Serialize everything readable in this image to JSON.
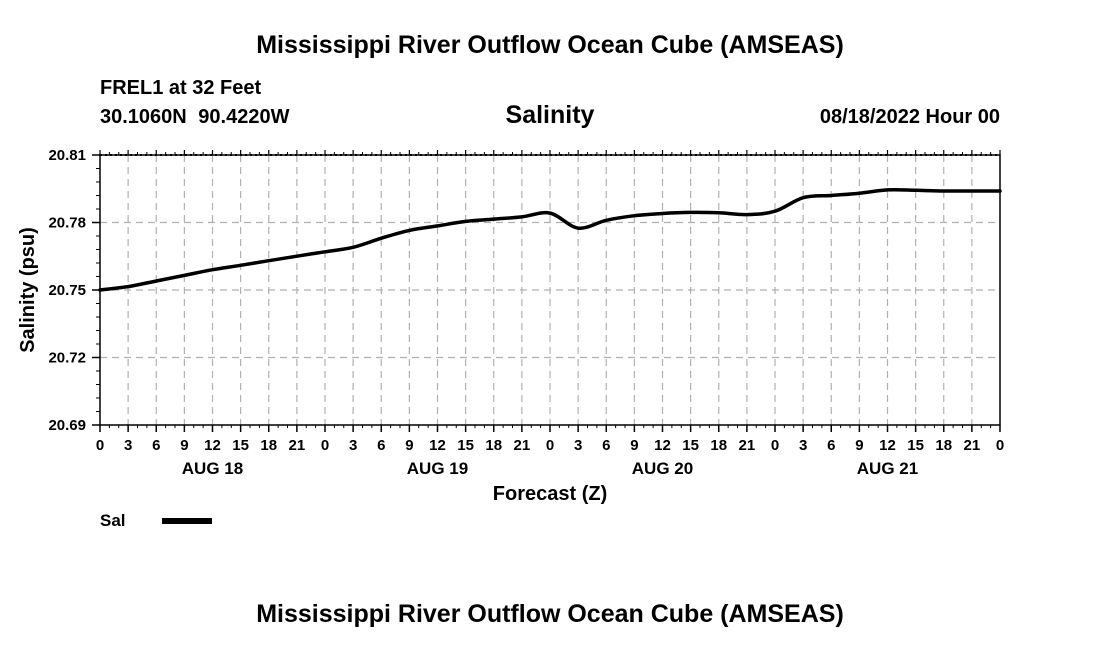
{
  "header": {
    "top_title": "Mississippi River Outflow Ocean Cube (AMSEAS)",
    "bottom_title": "Mississippi River Outflow Ocean Cube (AMSEAS)",
    "station": "FREL1 at 32 Feet",
    "coordinates": "30.1060N  90.4220W",
    "datetime": "08/18/2022 Hour 00"
  },
  "chart_data": {
    "type": "line",
    "title": "Salinity",
    "xlabel": "Forecast (Z)",
    "ylabel": "Salinity (psu)",
    "ylim": [
      20.69,
      20.81
    ],
    "yticks": [
      20.81,
      20.78,
      20.75,
      20.72,
      20.69
    ],
    "ytick_labels": [
      "20.81",
      "20.78",
      "20.75",
      "20.72",
      "20.69"
    ],
    "xlim": [
      0,
      96
    ],
    "x_ticks_hours": [
      0,
      3,
      6,
      9,
      12,
      15,
      18,
      21,
      24,
      27,
      30,
      33,
      36,
      39,
      42,
      45,
      48,
      51,
      54,
      57,
      60,
      63,
      66,
      69,
      72,
      75,
      78,
      81,
      84,
      87,
      90,
      93,
      96
    ],
    "x_tick_labels": [
      "0",
      "3",
      "6",
      "9",
      "12",
      "15",
      "18",
      "21",
      "0",
      "3",
      "6",
      "9",
      "12",
      "15",
      "18",
      "21",
      "0",
      "3",
      "6",
      "9",
      "12",
      "15",
      "18",
      "21",
      "0",
      "3",
      "6",
      "9",
      "12",
      "15",
      "18",
      "21",
      "0"
    ],
    "day_labels": [
      {
        "label": "AUG 18",
        "hour": 12
      },
      {
        "label": "AUG 19",
        "hour": 36
      },
      {
        "label": "AUG 20",
        "hour": 60
      },
      {
        "label": "AUG 21",
        "hour": 84
      }
    ],
    "grid": true,
    "legend": {
      "position": "bottom-left",
      "entries": [
        "Sal"
      ]
    },
    "series": [
      {
        "name": "Sal",
        "x": [
          0,
          3,
          6,
          9,
          12,
          15,
          18,
          21,
          24,
          27,
          30,
          33,
          36,
          39,
          42,
          45,
          48,
          51,
          54,
          57,
          60,
          63,
          66,
          69,
          72,
          75,
          78,
          81,
          84,
          87,
          90,
          93,
          96
        ],
        "values": [
          20.75,
          20.7515,
          20.754,
          20.7565,
          20.759,
          20.761,
          20.763,
          20.765,
          20.767,
          20.769,
          20.773,
          20.7765,
          20.7785,
          20.7805,
          20.7815,
          20.7825,
          20.7842,
          20.7775,
          20.781,
          20.783,
          20.784,
          20.7845,
          20.7843,
          20.7835,
          20.785,
          20.791,
          20.792,
          20.793,
          20.7945,
          20.7943,
          20.794,
          20.794,
          20.794
        ]
      }
    ]
  }
}
